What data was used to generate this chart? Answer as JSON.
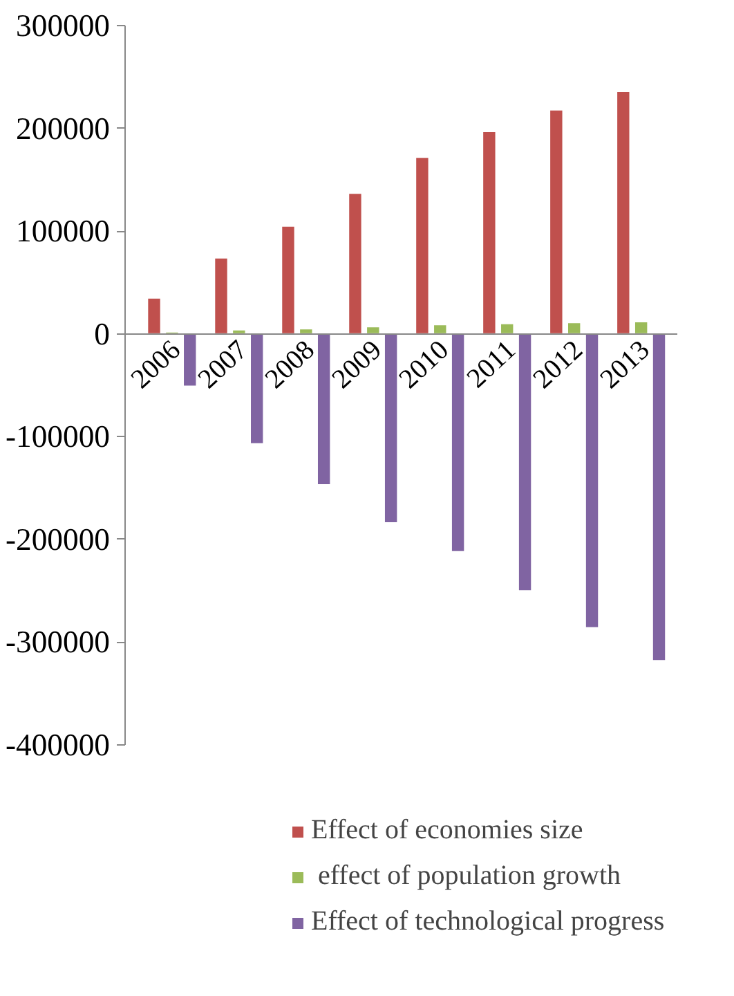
{
  "chart_data": {
    "type": "bar",
    "categories": [
      "2006",
      "2007",
      "2008",
      "2009",
      "2010",
      "2011",
      "2012",
      "2013"
    ],
    "series": [
      {
        "name": "Effect of economies size",
        "color": "#c0504d",
        "values": [
          35000,
          74000,
          105000,
          137000,
          172000,
          197000,
          218000,
          236000
        ]
      },
      {
        "name": " effect of population growth",
        "color": "#9bbb59",
        "values": [
          2000,
          4000,
          5000,
          7000,
          9000,
          10000,
          11000,
          12000
        ]
      },
      {
        "name": "Effect of technological progress",
        "color": "#8064a2",
        "values": [
          -51000,
          -107000,
          -147000,
          -184000,
          -212000,
          -250000,
          -286000,
          -318000
        ]
      }
    ],
    "ylim": [
      -400000,
      300000
    ],
    "yticks": [
      -400000,
      -300000,
      -200000,
      -100000,
      0,
      100000,
      200000,
      300000
    ],
    "grid": false,
    "legend": "bottom"
  }
}
